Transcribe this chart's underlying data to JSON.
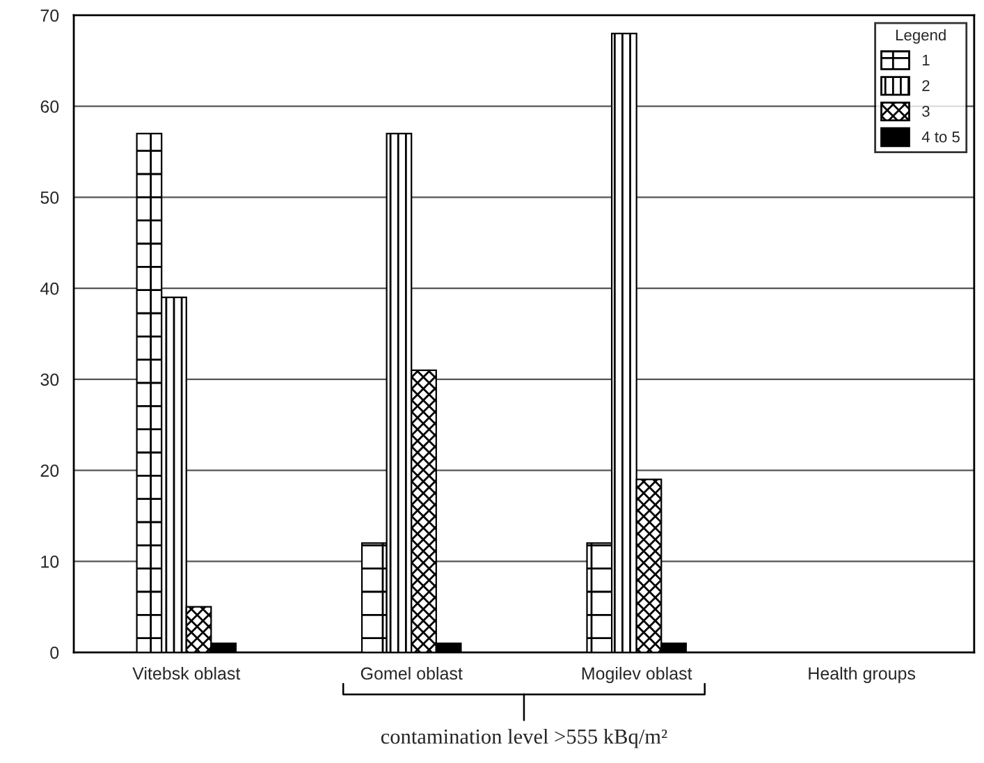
{
  "chart_data": {
    "type": "bar",
    "categories": [
      "Vitebsk oblast",
      "Gomel oblast",
      "Mogilev oblast",
      "Health groups"
    ],
    "series": [
      {
        "name": "1",
        "color": "#000000",
        "values": [
          57,
          12,
          12,
          null
        ]
      },
      {
        "name": "2",
        "color": "#000000",
        "values": [
          39,
          57,
          68,
          null
        ]
      },
      {
        "name": "3",
        "color": "#000000",
        "values": [
          5,
          31,
          19,
          null
        ]
      },
      {
        "name": "4 to 5",
        "color": "#000000",
        "values": [
          1,
          1,
          1,
          null
        ]
      }
    ],
    "ylim": [
      0,
      70
    ],
    "yticks": [
      0,
      10,
      20,
      30,
      40,
      50,
      60,
      70
    ],
    "grid": "y",
    "legend": "top right",
    "legend_title": "Legend",
    "annotations": [
      "contamination level >555 kBq/m²"
    ]
  }
}
